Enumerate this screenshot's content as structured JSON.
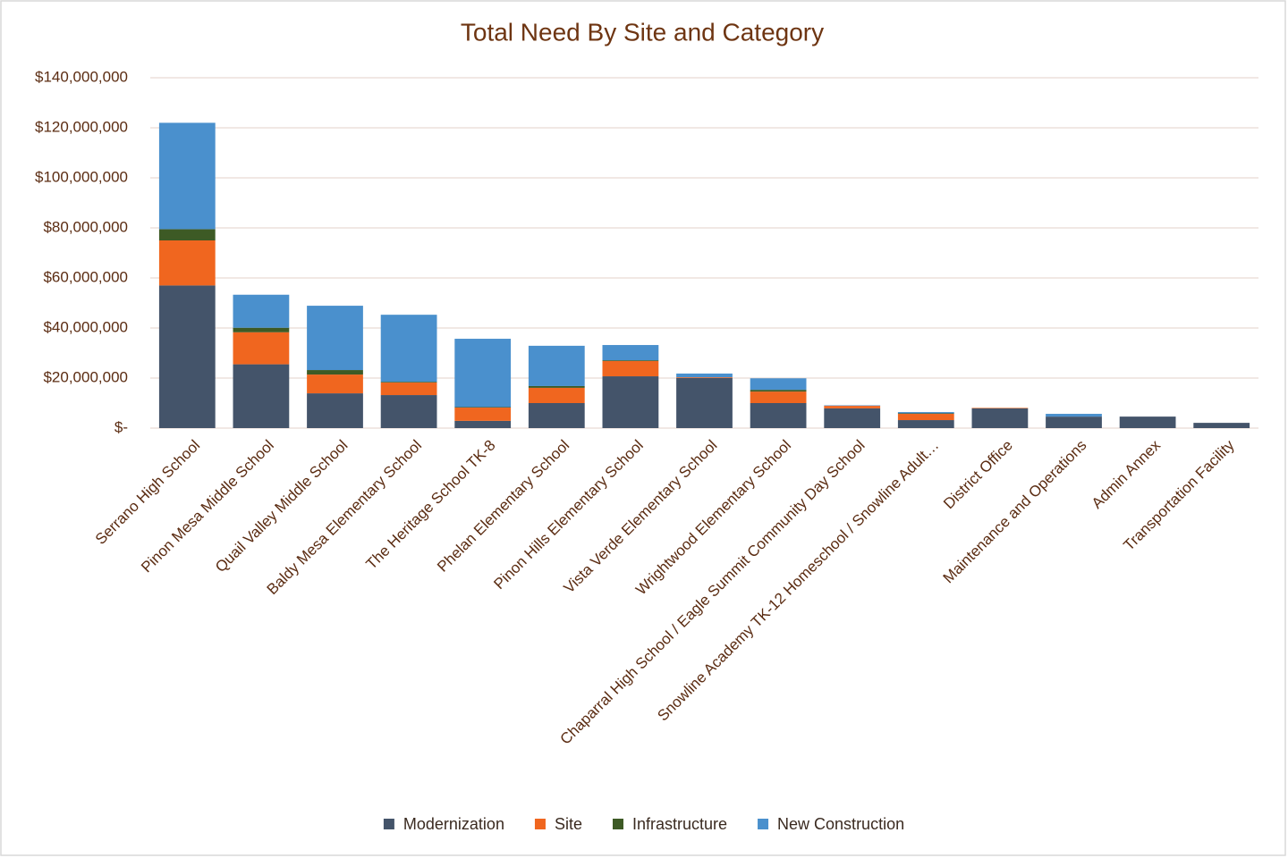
{
  "chart_data": {
    "type": "stacked_bar",
    "title": "Total Need By Site and Category",
    "categories": [
      "Serrano High School",
      "Pinon Mesa Middle School",
      "Quail Valley Middle School",
      "Baldy Mesa Elementary School",
      "The Heritage School TK-8",
      "Phelan Elementary School",
      "Pinon Hills Elementary School",
      "Vista Verde Elementary School",
      "Wrightwood Elementary School",
      "Chaparral High School / Eagle Summit Community Day School",
      "Snowline Academy TK-12 Homeschool / Snowline Adult…",
      "District Office",
      "Maintenance and Operations",
      "Admin Annex",
      "Transportation Facility"
    ],
    "series": [
      {
        "name": "Modernization",
        "color": "#44546a",
        "values": [
          57000000,
          25500000,
          13900000,
          13200000,
          2900000,
          10000000,
          20700000,
          20000000,
          10000000,
          7900000,
          3200000,
          7900000,
          4600000,
          4600000,
          2100000
        ]
      },
      {
        "name": "Site",
        "color": "#f0661f",
        "values": [
          18000000,
          12800000,
          7500000,
          5000000,
          5300000,
          6100000,
          6100000,
          300000,
          4600000,
          1000000,
          2500000,
          200000,
          0,
          0,
          0
        ]
      },
      {
        "name": "Infrastructure",
        "color": "#3d5a25",
        "values": [
          4500000,
          1800000,
          1800000,
          300000,
          200000,
          700000,
          300000,
          0,
          700000,
          0,
          200000,
          0,
          0,
          0,
          0
        ]
      },
      {
        "name": "New Construction",
        "color": "#4a90cd",
        "values": [
          42500000,
          13200000,
          25700000,
          26800000,
          27300000,
          16100000,
          6100000,
          1500000,
          4600000,
          200000,
          500000,
          0,
          1100000,
          0,
          0
        ]
      }
    ],
    "ylim": [
      0,
      140000000
    ],
    "yticks": [
      {
        "value": 0,
        "label": "$-"
      },
      {
        "value": 20000000,
        "label": "$20,000,000"
      },
      {
        "value": 40000000,
        "label": "$40,000,000"
      },
      {
        "value": 60000000,
        "label": "$60,000,000"
      },
      {
        "value": 80000000,
        "label": "$80,000,000"
      },
      {
        "value": 100000000,
        "label": "$100,000,000"
      },
      {
        "value": 120000000,
        "label": "$120,000,000"
      },
      {
        "value": 140000000,
        "label": "$140,000,000"
      }
    ],
    "grid": true,
    "legend": "bottom"
  }
}
